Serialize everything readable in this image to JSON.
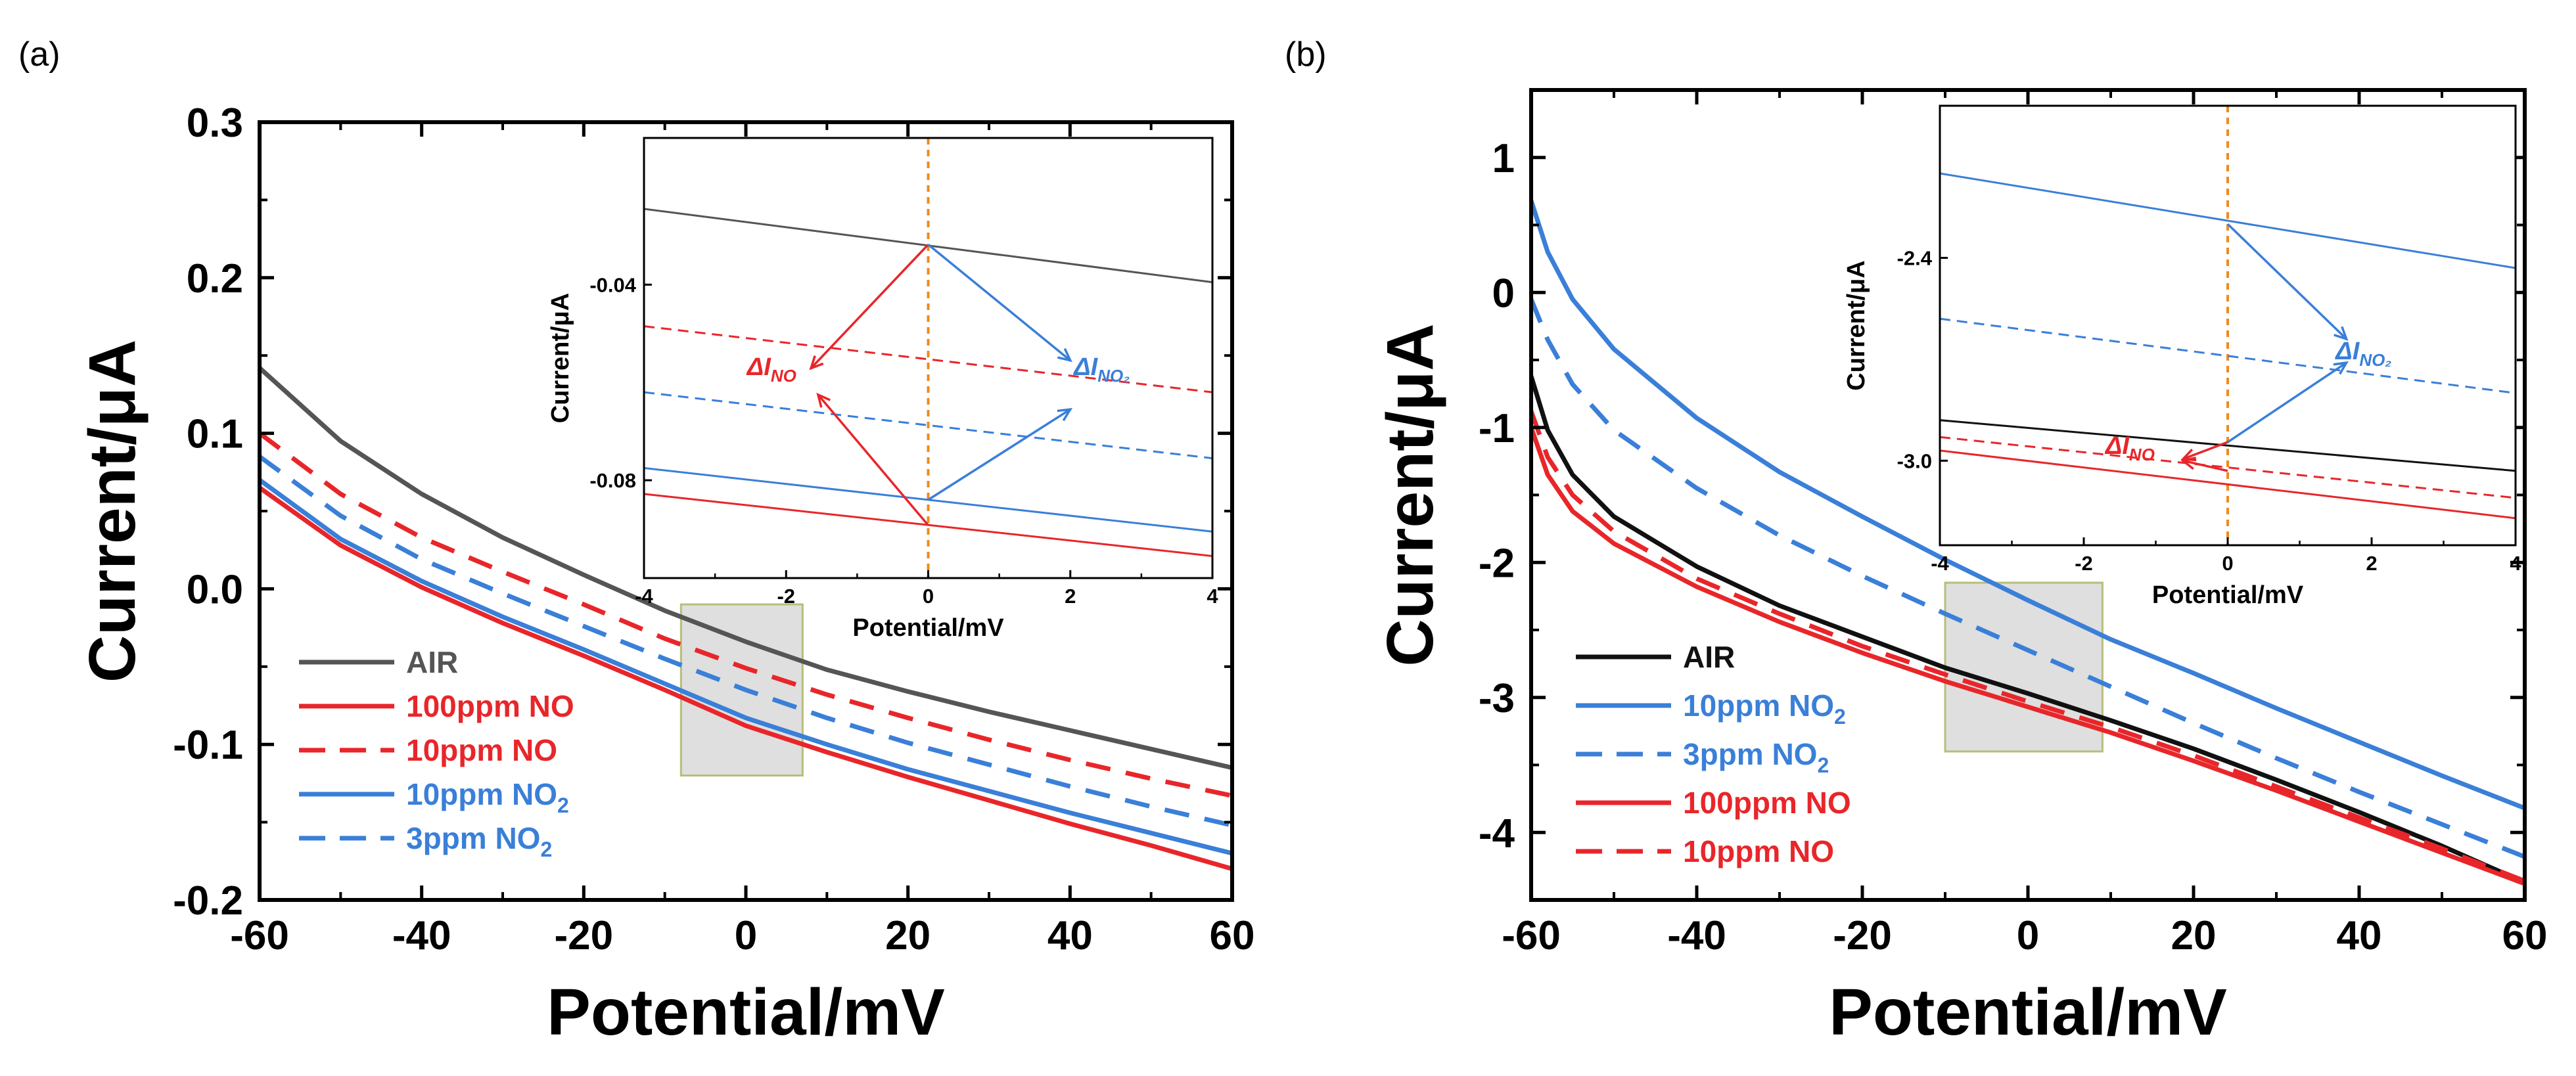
{
  "chart_data": [
    {
      "panel_label": "(a)",
      "type": "line",
      "xlabel": "Potential/mV",
      "ylabel": "Current/μA",
      "xlim": [
        -60,
        60
      ],
      "ylim": [
        -0.2,
        0.3
      ],
      "xticks": [
        "-60",
        "-40",
        "-20",
        "0",
        "20",
        "40",
        "60"
      ],
      "yticks": [
        "-0.2",
        "-0.1",
        "0.0",
        "0.1",
        "0.2",
        "0.3"
      ],
      "series": [
        {
          "name": "AIR",
          "color": "#555555",
          "dash": false,
          "x": [
            -60,
            -50,
            -40,
            -30,
            -20,
            -10,
            0,
            10,
            20,
            30,
            40,
            50,
            60
          ],
          "y": [
            0.142,
            0.095,
            0.061,
            0.033,
            0.009,
            -0.014,
            -0.034,
            -0.052,
            -0.066,
            -0.079,
            -0.091,
            -0.103,
            -0.115
          ]
        },
        {
          "name": "100ppm NO",
          "color": "#e8262a",
          "dash": false,
          "x": [
            -60,
            -50,
            -40,
            -30,
            -20,
            -10,
            0,
            10,
            20,
            30,
            40,
            50,
            60
          ],
          "y": [
            0.065,
            0.028,
            0.001,
            -0.022,
            -0.043,
            -0.065,
            -0.088,
            -0.105,
            -0.121,
            -0.136,
            -0.151,
            -0.165,
            -0.18
          ]
        },
        {
          "name": "10ppm NO",
          "color": "#e8262a",
          "dash": true,
          "x": [
            -60,
            -50,
            -40,
            -30,
            -20,
            -10,
            0,
            10,
            20,
            30,
            40,
            50,
            60
          ],
          "y": [
            0.1,
            0.061,
            0.033,
            0.011,
            -0.01,
            -0.032,
            -0.051,
            -0.068,
            -0.083,
            -0.097,
            -0.11,
            -0.122,
            -0.133
          ]
        },
        {
          "name": "10ppm NO2",
          "color": "#3a7fd8",
          "dash": false,
          "x": [
            -60,
            -50,
            -40,
            -30,
            -20,
            -10,
            0,
            10,
            20,
            30,
            40,
            50,
            60
          ],
          "y": [
            0.07,
            0.032,
            0.005,
            -0.018,
            -0.039,
            -0.061,
            -0.083,
            -0.1,
            -0.116,
            -0.13,
            -0.144,
            -0.157,
            -0.17
          ]
        },
        {
          "name": "3ppm NO2",
          "color": "#3a7fd8",
          "dash": true,
          "x": [
            -60,
            -50,
            -40,
            -30,
            -20,
            -10,
            0,
            10,
            20,
            30,
            40,
            50,
            60
          ],
          "y": [
            0.085,
            0.047,
            0.019,
            -0.003,
            -0.024,
            -0.045,
            -0.065,
            -0.083,
            -0.099,
            -0.113,
            -0.127,
            -0.14,
            -0.152
          ]
        }
      ],
      "legend": [
        {
          "label": "AIR",
          "sub": "",
          "color": "#555555",
          "dash": false
        },
        {
          "label": "100ppm NO",
          "sub": "",
          "color": "#e8262a",
          "dash": false
        },
        {
          "label": "10ppm NO",
          "sub": "",
          "color": "#e8262a",
          "dash": true
        },
        {
          "label": "10ppm NO",
          "sub": "2",
          "color": "#3a7fd8",
          "dash": false
        },
        {
          "label": "3ppm NO",
          "sub": "2",
          "color": "#3a7fd8",
          "dash": true
        }
      ],
      "highlight_box": {
        "x": [
          -8,
          7
        ],
        "y": [
          -0.12,
          -0.01
        ]
      },
      "inset": {
        "xlabel": "Potential/mV",
        "ylabel": "Current/μA",
        "xlim": [
          -4,
          4
        ],
        "ylim": [
          -0.1,
          -0.01
        ],
        "xticks": [
          "-4",
          "-2",
          "0",
          "2",
          "4"
        ],
        "yticks": [
          "-0.04",
          "-0.08"
        ],
        "ytick_values": [
          -0.04,
          -0.08
        ],
        "series": [
          {
            "name": "AIR",
            "color": "#555555",
            "dash": false,
            "x": [
              -4,
              4
            ],
            "y": [
              -0.0245,
              -0.0395
            ]
          },
          {
            "name": "10ppm NO",
            "color": "#e8262a",
            "dash": true,
            "x": [
              -4,
              4
            ],
            "y": [
              -0.0485,
              -0.062
            ]
          },
          {
            "name": "3ppm NO2",
            "color": "#3a7fd8",
            "dash": true,
            "x": [
              -4,
              4
            ],
            "y": [
              -0.062,
              -0.0755
            ]
          },
          {
            "name": "10ppm NO2",
            "color": "#3a7fd8",
            "dash": false,
            "x": [
              -4,
              4
            ],
            "y": [
              -0.0775,
              -0.0905
            ]
          },
          {
            "name": "100ppm NO",
            "color": "#e8262a",
            "dash": false,
            "x": [
              -4,
              4
            ],
            "y": [
              -0.0828,
              -0.0955
            ]
          }
        ],
        "arrows": [
          {
            "color": "#e8262a",
            "from": [
              0,
              -0.0318
            ],
            "to": [
              -1.65,
              -0.0571
            ]
          },
          {
            "color": "#e8262a",
            "from": [
              0,
              -0.0892
            ],
            "to": [
              -1.55,
              -0.0625
            ]
          },
          {
            "color": "#3a7fd8",
            "from": [
              0,
              -0.0318
            ],
            "to": [
              2.0,
              -0.0555
            ]
          },
          {
            "color": "#3a7fd8",
            "from": [
              0,
              -0.084
            ],
            "to": [
              2.0,
              -0.0655
            ]
          }
        ],
        "annotations": [
          {
            "text": "ΔI",
            "sub": "NO",
            "color": "#e8262a",
            "x": -2.55,
            "y": -0.0585
          },
          {
            "text": "ΔI",
            "sub": "NO₂",
            "color": "#3a7fd8",
            "x": 2.05,
            "y": -0.0585
          }
        ]
      }
    },
    {
      "panel_label": "(b)",
      "type": "line",
      "xlabel": "Potential/mV",
      "ylabel": "Current/μA",
      "xlim": [
        -60,
        60
      ],
      "ylim": [
        -4.5,
        1.5
      ],
      "xticks": [
        "-60",
        "-40",
        "-20",
        "0",
        "20",
        "40",
        "60"
      ],
      "yticks": [
        "-4",
        "-3",
        "-2",
        "-1",
        "0",
        "1"
      ],
      "series": [
        {
          "name": "AIR",
          "color": "#111111",
          "dash": false,
          "x": [
            -60,
            -58,
            -55,
            -50,
            -40,
            -30,
            -20,
            -10,
            0,
            10,
            20,
            30,
            40,
            50,
            60
          ],
          "y": [
            -0.62,
            -1.02,
            -1.35,
            -1.66,
            -2.03,
            -2.32,
            -2.55,
            -2.78,
            -2.97,
            -3.17,
            -3.38,
            -3.61,
            -3.85,
            -4.1,
            -4.37
          ]
        },
        {
          "name": "10ppm NO2",
          "color": "#3a7fd8",
          "dash": false,
          "x": [
            -60,
            -58,
            -55,
            -50,
            -40,
            -30,
            -20,
            -10,
            0,
            10,
            20,
            30,
            40,
            50,
            60
          ],
          "y": [
            0.68,
            0.3,
            -0.05,
            -0.42,
            -0.93,
            -1.33,
            -1.66,
            -1.98,
            -2.28,
            -2.57,
            -2.82,
            -3.08,
            -3.33,
            -3.58,
            -3.82
          ]
        },
        {
          "name": "3ppm NO2",
          "color": "#3a7fd8",
          "dash": true,
          "x": [
            -60,
            -58,
            -55,
            -50,
            -40,
            -30,
            -20,
            -10,
            0,
            10,
            20,
            30,
            40,
            50,
            60
          ],
          "y": [
            -0.05,
            -0.35,
            -0.68,
            -1.02,
            -1.45,
            -1.8,
            -2.1,
            -2.38,
            -2.65,
            -2.92,
            -3.19,
            -3.45,
            -3.7,
            -3.94,
            -4.18
          ]
        },
        {
          "name": "100ppm NO",
          "color": "#e8262a",
          "dash": false,
          "x": [
            -60,
            -58,
            -55,
            -50,
            -40,
            -30,
            -20,
            -10,
            0,
            10,
            20,
            30,
            40,
            50,
            60
          ],
          "y": [
            -1.0,
            -1.35,
            -1.62,
            -1.86,
            -2.18,
            -2.44,
            -2.67,
            -2.88,
            -3.07,
            -3.26,
            -3.47,
            -3.69,
            -3.92,
            -4.15,
            -4.38
          ]
        },
        {
          "name": "10ppm NO",
          "color": "#e8262a",
          "dash": true,
          "x": [
            -60,
            -58,
            -55,
            -50,
            -40,
            -30,
            -20,
            -10,
            0,
            10,
            20,
            30,
            40,
            50,
            60
          ],
          "y": [
            -0.88,
            -1.22,
            -1.5,
            -1.77,
            -2.12,
            -2.38,
            -2.62,
            -2.83,
            -3.03,
            -3.22,
            -3.43,
            -3.66,
            -3.89,
            -4.12,
            -4.36
          ]
        }
      ],
      "legend": [
        {
          "label": "AIR",
          "sub": "",
          "color": "#111111",
          "dash": false
        },
        {
          "label": "10ppm NO",
          "sub": "2",
          "color": "#3a7fd8",
          "dash": false
        },
        {
          "label": "3ppm NO",
          "sub": "2",
          "color": "#3a7fd8",
          "dash": true
        },
        {
          "label": "100ppm NO",
          "sub": "",
          "color": "#e8262a",
          "dash": false
        },
        {
          "label": "10ppm NO",
          "sub": "",
          "color": "#e8262a",
          "dash": true
        }
      ],
      "highlight_box": {
        "x": [
          -10,
          9
        ],
        "y": [
          -3.4,
          -2.15
        ]
      },
      "inset": {
        "xlabel": "Potential/mV",
        "ylabel": "Current/μA",
        "xlim": [
          -4,
          4
        ],
        "ylim": [
          -3.25,
          -1.95
        ],
        "xticks": [
          "-4",
          "-2",
          "0",
          "2",
          "4"
        ],
        "yticks": [
          "-2.4",
          "-3.0"
        ],
        "ytick_values": [
          -2.4,
          -3.0
        ],
        "series": [
          {
            "name": "10ppm NO2",
            "color": "#3a7fd8",
            "dash": false,
            "x": [
              -4,
              4
            ],
            "y": [
              -2.15,
              -2.43
            ]
          },
          {
            "name": "3ppm NO2",
            "color": "#3a7fd8",
            "dash": true,
            "x": [
              -4,
              4
            ],
            "y": [
              -2.58,
              -2.8
            ]
          },
          {
            "name": "AIR",
            "color": "#111111",
            "dash": false,
            "x": [
              -4,
              4
            ],
            "y": [
              -2.88,
              -3.03
            ]
          },
          {
            "name": "10ppm NO",
            "color": "#e8262a",
            "dash": true,
            "x": [
              -4,
              4
            ],
            "y": [
              -2.93,
              -3.11
            ]
          },
          {
            "name": "100ppm NO",
            "color": "#e8262a",
            "dash": false,
            "x": [
              -4,
              4
            ],
            "y": [
              -2.97,
              -3.17
            ]
          }
        ],
        "arrows": [
          {
            "color": "#3a7fd8",
            "from": [
              0,
              -2.3
            ],
            "to": [
              1.65,
              -2.64
            ]
          },
          {
            "color": "#3a7fd8",
            "from": [
              0,
              -2.945
            ],
            "to": [
              1.65,
              -2.71
            ]
          },
          {
            "color": "#e8262a",
            "from": [
              0,
              -2.945
            ],
            "to": [
              -0.62,
              -2.995
            ]
          },
          {
            "color": "#e8262a",
            "from": [
              0,
              -3.03
            ],
            "to": [
              -0.62,
              -3.0
            ]
          }
        ],
        "annotations": [
          {
            "text": "ΔI",
            "sub": "NO₂",
            "color": "#3a7fd8",
            "x": 1.5,
            "y": -2.7
          },
          {
            "text": "ΔI",
            "sub": "NO",
            "color": "#e8262a",
            "x": -1.7,
            "y": -2.98
          }
        ]
      }
    }
  ]
}
